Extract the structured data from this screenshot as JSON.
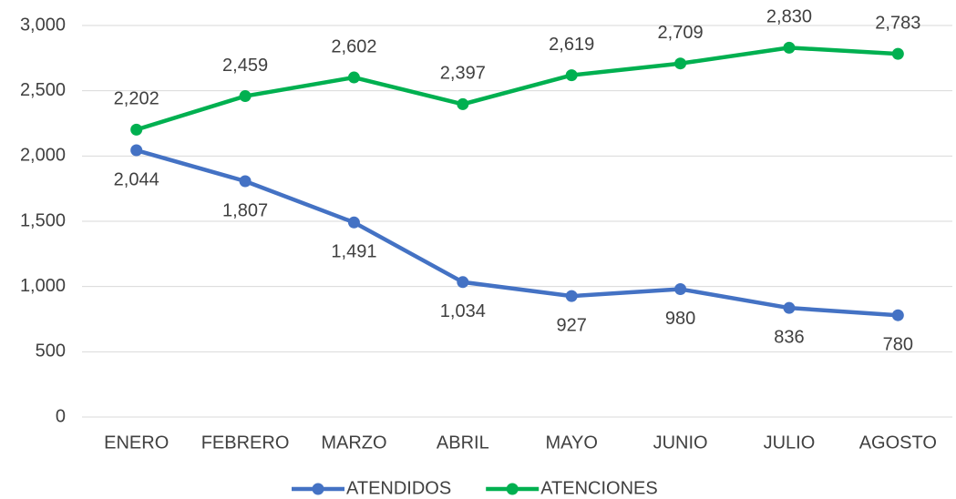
{
  "chart_data": {
    "type": "line",
    "categories": [
      "ENERO",
      "FEBRERO",
      "MARZO",
      "ABRIL",
      "MAYO",
      "JUNIO",
      "JULIO",
      "AGOSTO"
    ],
    "series": [
      {
        "name": "ATENDIDOS",
        "color": "#4472c4",
        "values": [
          2044,
          1807,
          1491,
          1034,
          927,
          980,
          836,
          780
        ],
        "value_labels": [
          "2,044",
          "1,807",
          "1,491",
          "1,034",
          "927",
          "980",
          "836",
          "780"
        ]
      },
      {
        "name": "ATENCIONES",
        "color": "#00b050",
        "values": [
          2202,
          2459,
          2602,
          2397,
          2619,
          2709,
          2830,
          2783
        ],
        "value_labels": [
          "2,202",
          "2,459",
          "2,602",
          "2,397",
          "2,619",
          "2,709",
          "2,830",
          "2,783"
        ]
      }
    ],
    "ylim": [
      0,
      3000
    ],
    "yticks": [
      0,
      500,
      {
        "value": 1000,
        "label": "1,000"
      },
      {
        "value": 1500,
        "label": "1,500"
      },
      {
        "value": 2000,
        "label": "2,000"
      },
      {
        "value": 2500,
        "label": "2,500"
      },
      {
        "value": 3000,
        "label": "3,000"
      }
    ],
    "grid": true,
    "legend": "bottom"
  }
}
